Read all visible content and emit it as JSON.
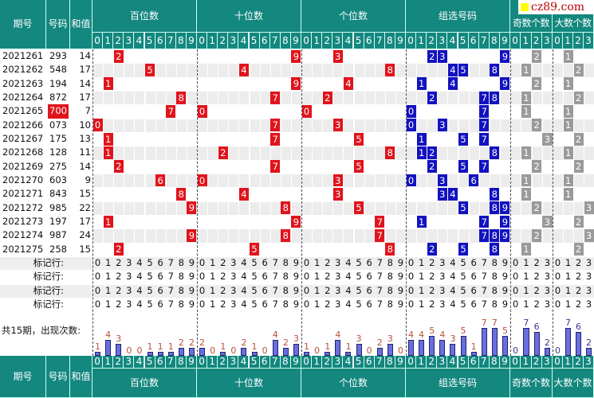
{
  "header": {
    "period": "期号",
    "number": "号码",
    "sum": "和值",
    "sections": [
      "百位数",
      "十位数",
      "个位数",
      "组选号码",
      "奇数个数",
      "大数个数"
    ]
  },
  "digits10": [
    "0",
    "1",
    "2",
    "3",
    "4",
    "5",
    "6",
    "7",
    "8",
    "9"
  ],
  "digits4": [
    "0",
    "1",
    "2",
    "3"
  ],
  "rows": [
    {
      "period": "2021261",
      "number": "293",
      "sum": "14"
    },
    {
      "period": "2021262",
      "number": "548",
      "sum": "17"
    },
    {
      "period": "2021263",
      "number": "194",
      "sum": "14"
    },
    {
      "period": "2021264",
      "number": "872",
      "sum": "17"
    },
    {
      "period": "2021265",
      "number": "700",
      "sum": "7",
      "highlight": true
    },
    {
      "period": "2021266",
      "number": "073",
      "sum": "10"
    },
    {
      "period": "2021267",
      "number": "175",
      "sum": "13"
    },
    {
      "period": "2021268",
      "number": "128",
      "sum": "11"
    },
    {
      "period": "2021269",
      "number": "275",
      "sum": "14"
    },
    {
      "period": "2021270",
      "number": "603",
      "sum": "9"
    },
    {
      "period": "2021271",
      "number": "843",
      "sum": "15"
    },
    {
      "period": "2021272",
      "number": "985",
      "sum": "22"
    },
    {
      "period": "2021273",
      "number": "197",
      "sum": "17"
    },
    {
      "period": "2021274",
      "number": "987",
      "sum": "24"
    },
    {
      "period": "2021275",
      "number": "258",
      "sum": "15"
    }
  ],
  "marker_label": "标记行:",
  "marker_rows": 4,
  "stats": {
    "label": "共15期，出现次数:",
    "counts": [
      [
        1,
        4,
        3,
        0,
        0,
        1,
        1,
        1,
        2,
        2
      ],
      [
        2,
        0,
        1,
        0,
        2,
        1,
        0,
        4,
        2,
        3
      ],
      [
        1,
        0,
        1,
        4,
        1,
        3,
        0,
        2,
        3,
        0
      ],
      [
        4,
        4,
        5,
        4,
        3,
        5,
        1,
        7,
        7,
        5
      ],
      [
        0,
        7,
        6,
        2
      ],
      [
        0,
        7,
        6,
        2
      ]
    ]
  },
  "watermark": "cz89.com",
  "colors": {
    "teal": "#14877f",
    "red": "#e0141c",
    "blue": "#1212c0",
    "gray": "#9a9a9a"
  }
}
